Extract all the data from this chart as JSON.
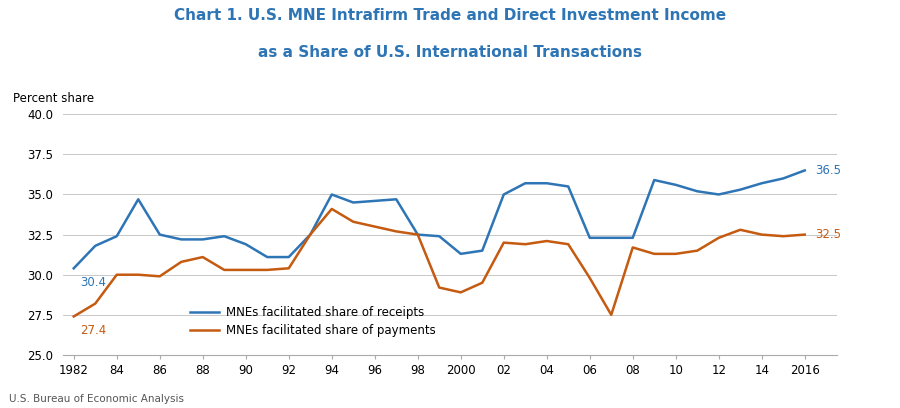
{
  "title_line1": "Chart 1. U.S. MNE Intrafirm Trade and Direct Investment Income",
  "title_line2": "as a Share of U.S. International Transactions",
  "title_color": "#2e75b6",
  "ylabel": "Percent share",
  "source": "U.S. Bureau of Economic Analysis",
  "ylim": [
    25.0,
    40.0
  ],
  "yticks": [
    25.0,
    27.5,
    30.0,
    32.5,
    35.0,
    37.5,
    40.0
  ],
  "xtick_labels": [
    "1982",
    "84",
    "86",
    "88",
    "90",
    "92",
    "94",
    "96",
    "98",
    "2000",
    "02",
    "04",
    "06",
    "08",
    "10",
    "12",
    "14",
    "2016"
  ],
  "receipts_years": [
    1982,
    1983,
    1984,
    1985,
    1986,
    1987,
    1988,
    1989,
    1990,
    1991,
    1992,
    1993,
    1994,
    1995,
    1996,
    1997,
    1998,
    1999,
    2000,
    2001,
    2002,
    2003,
    2004,
    2005,
    2006,
    2007,
    2008,
    2009,
    2010,
    2011,
    2012,
    2013,
    2014,
    2015,
    2016
  ],
  "receipts_values": [
    30.4,
    31.8,
    32.4,
    34.7,
    32.5,
    32.2,
    32.2,
    32.4,
    31.9,
    31.1,
    31.1,
    32.5,
    35.0,
    34.5,
    34.6,
    34.7,
    32.5,
    32.4,
    31.3,
    31.5,
    35.0,
    35.7,
    35.7,
    35.5,
    32.3,
    32.3,
    32.3,
    35.9,
    35.6,
    35.2,
    35.0,
    35.3,
    35.7,
    36.0,
    36.5
  ],
  "payments_years": [
    1982,
    1983,
    1984,
    1985,
    1986,
    1987,
    1988,
    1989,
    1990,
    1991,
    1992,
    1993,
    1994,
    1995,
    1996,
    1997,
    1998,
    1999,
    2000,
    2001,
    2002,
    2003,
    2004,
    2005,
    2006,
    2007,
    2008,
    2009,
    2010,
    2011,
    2012,
    2013,
    2014,
    2015,
    2016
  ],
  "payments_values": [
    27.4,
    28.2,
    30.0,
    30.0,
    29.9,
    30.8,
    31.1,
    30.3,
    30.3,
    30.3,
    30.4,
    32.5,
    34.1,
    33.3,
    33.0,
    32.7,
    32.5,
    29.2,
    28.9,
    29.5,
    32.0,
    31.9,
    32.1,
    31.9,
    29.8,
    27.5,
    31.7,
    31.3,
    31.3,
    31.5,
    32.3,
    32.8,
    32.5,
    32.4,
    32.5
  ],
  "receipts_color": "#2e75b6",
  "payments_color": "#c55a11",
  "receipts_label": "MNEs facilitated share of receipts",
  "payments_label": "MNEs facilitated share of payments",
  "receipts_start_label": "30.4",
  "payments_start_label": "27.4",
  "receipts_end_label": "36.5",
  "payments_end_label": "32.5",
  "background_color": "#ffffff",
  "grid_color": "#c8c8c8"
}
